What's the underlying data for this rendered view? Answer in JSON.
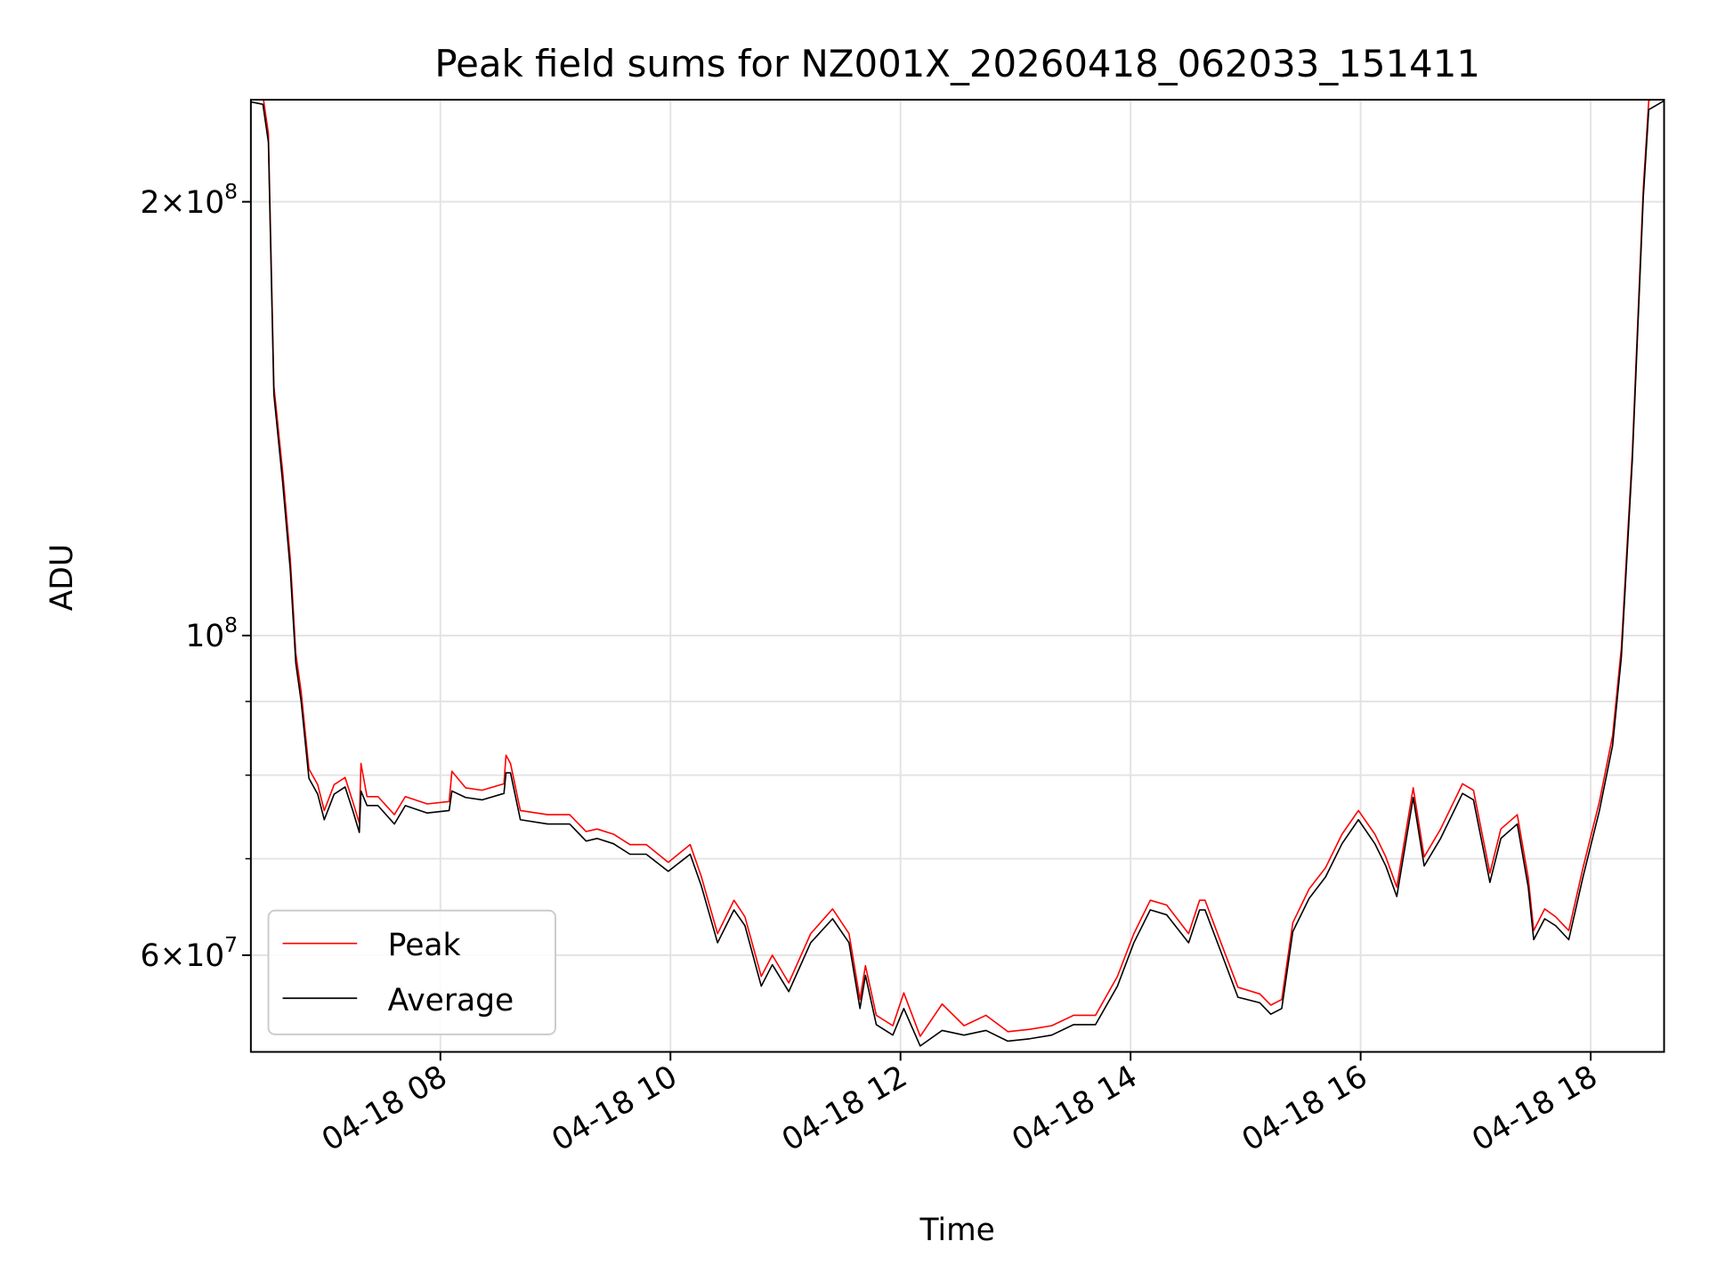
{
  "chart_data": {
    "type": "line",
    "title": "Peak field sums for NZ001X_20260418_062033_151411",
    "xlabel": "Time",
    "ylabel": "ADU",
    "y_scale": "log",
    "x_units": "hours of day 2026-04-18",
    "y_units": "ADU (millions)",
    "xlim": [
      6.35,
      18.64
    ],
    "ylim_millions": [
      51.4,
      235
    ],
    "x_ticks": [
      {
        "value": 8,
        "label": "04-18 08"
      },
      {
        "value": 10,
        "label": "04-18 10"
      },
      {
        "value": 12,
        "label": "04-18 12"
      },
      {
        "value": 14,
        "label": "04-18 14"
      },
      {
        "value": 16,
        "label": "04-18 16"
      },
      {
        "value": 18,
        "label": "04-18 18"
      }
    ],
    "y_major_ticks": [
      {
        "value": 200,
        "base": "2×10",
        "exp": "8"
      },
      {
        "value": 100,
        "base": "10",
        "exp": "8"
      },
      {
        "value": 60,
        "base": "6×10",
        "exp": "7"
      }
    ],
    "y_minor_ticks": [
      70,
      80,
      90
    ],
    "grid": true,
    "legend_position": "lower-left",
    "series": [
      {
        "name": "Peak",
        "color": "#ff0000",
        "points": [
          [
            6.352,
            238
          ],
          [
            6.457,
            237
          ],
          [
            6.505,
            223
          ],
          [
            6.552,
            149
          ],
          [
            6.629,
            130
          ],
          [
            6.695,
            113
          ],
          [
            6.743,
            97.2
          ],
          [
            6.79,
            91.4
          ],
          [
            6.857,
            80.8
          ],
          [
            6.933,
            78.8
          ],
          [
            6.99,
            75.6
          ],
          [
            7.076,
            78.8
          ],
          [
            7.171,
            79.7
          ],
          [
            7.238,
            76.7
          ],
          [
            7.295,
            74.1
          ],
          [
            7.31,
            81.5
          ],
          [
            7.362,
            77.3
          ],
          [
            7.457,
            77.3
          ],
          [
            7.6,
            75.1
          ],
          [
            7.695,
            77.3
          ],
          [
            7.886,
            76.4
          ],
          [
            8.076,
            76.7
          ],
          [
            8.1,
            80.5
          ],
          [
            8.219,
            78.4
          ],
          [
            8.362,
            78.1
          ],
          [
            8.552,
            78.9
          ],
          [
            8.57,
            82.6
          ],
          [
            8.61,
            81.5
          ],
          [
            8.695,
            75.6
          ],
          [
            8.933,
            75.1
          ],
          [
            9.124,
            75.1
          ],
          [
            9.267,
            73.1
          ],
          [
            9.362,
            73.4
          ],
          [
            9.505,
            72.8
          ],
          [
            9.648,
            71.6
          ],
          [
            9.79,
            71.6
          ],
          [
            9.981,
            69.6
          ],
          [
            10.171,
            71.6
          ],
          [
            10.267,
            68.1
          ],
          [
            10.41,
            62.1
          ],
          [
            10.552,
            65.5
          ],
          [
            10.648,
            63.8
          ],
          [
            10.79,
            58.0
          ],
          [
            10.886,
            60.0
          ],
          [
            11.029,
            57.4
          ],
          [
            11.219,
            62.1
          ],
          [
            11.41,
            64.6
          ],
          [
            11.552,
            62.1
          ],
          [
            11.648,
            55.9
          ],
          [
            11.695,
            59.0
          ],
          [
            11.79,
            54.5
          ],
          [
            11.933,
            53.6
          ],
          [
            12.029,
            56.5
          ],
          [
            12.171,
            52.7
          ],
          [
            12.362,
            55.5
          ],
          [
            12.552,
            53.6
          ],
          [
            12.743,
            54.5
          ],
          [
            12.933,
            53.1
          ],
          [
            13.124,
            53.3
          ],
          [
            13.314,
            53.6
          ],
          [
            13.505,
            54.5
          ],
          [
            13.695,
            54.5
          ],
          [
            13.886,
            58.0
          ],
          [
            14.029,
            62.1
          ],
          [
            14.171,
            65.5
          ],
          [
            14.314,
            65.0
          ],
          [
            14.505,
            62.1
          ],
          [
            14.6,
            65.5
          ],
          [
            14.648,
            65.5
          ],
          [
            14.79,
            61.1
          ],
          [
            14.933,
            57.0
          ],
          [
            15.124,
            56.4
          ],
          [
            15.219,
            55.4
          ],
          [
            15.314,
            55.9
          ],
          [
            15.41,
            63.2
          ],
          [
            15.552,
            66.7
          ],
          [
            15.695,
            69.0
          ],
          [
            15.838,
            72.8
          ],
          [
            15.981,
            75.6
          ],
          [
            16.124,
            72.8
          ],
          [
            16.219,
            70.2
          ],
          [
            16.314,
            66.9
          ],
          [
            16.457,
            78.4
          ],
          [
            16.552,
            70.2
          ],
          [
            16.695,
            73.4
          ],
          [
            16.886,
            78.9
          ],
          [
            16.981,
            78.1
          ],
          [
            17.124,
            68.4
          ],
          [
            17.219,
            73.4
          ],
          [
            17.362,
            75.1
          ],
          [
            17.457,
            67.9
          ],
          [
            17.505,
            62.4
          ],
          [
            17.6,
            64.6
          ],
          [
            17.695,
            63.8
          ],
          [
            17.81,
            62.4
          ],
          [
            17.933,
            69.0
          ],
          [
            18.076,
            76.7
          ],
          [
            18.19,
            85.2
          ],
          [
            18.267,
            98.0
          ],
          [
            18.362,
            134
          ],
          [
            18.457,
            204
          ],
          [
            18.505,
            235
          ],
          [
            18.638,
            238
          ]
        ]
      },
      {
        "name": "Average",
        "color": "#000000",
        "points": [
          [
            6.352,
            234.6
          ],
          [
            6.457,
            233.7
          ],
          [
            6.505,
            220
          ],
          [
            6.552,
            147
          ],
          [
            6.629,
            127.8
          ],
          [
            6.695,
            111
          ],
          [
            6.743,
            95.7
          ],
          [
            6.79,
            90
          ],
          [
            6.857,
            79.6
          ],
          [
            6.933,
            77.6
          ],
          [
            6.99,
            74.5
          ],
          [
            7.076,
            77.6
          ],
          [
            7.171,
            78.5
          ],
          [
            7.238,
            75.6
          ],
          [
            7.295,
            73.0
          ],
          [
            7.31,
            78.0
          ],
          [
            7.362,
            76.2
          ],
          [
            7.457,
            76.2
          ],
          [
            7.6,
            74.0
          ],
          [
            7.695,
            76.2
          ],
          [
            7.886,
            75.3
          ],
          [
            8.076,
            75.6
          ],
          [
            8.1,
            78.0
          ],
          [
            8.219,
            77.2
          ],
          [
            8.362,
            76.9
          ],
          [
            8.552,
            77.7
          ],
          [
            8.57,
            80.3
          ],
          [
            8.61,
            80.3
          ],
          [
            8.695,
            74.5
          ],
          [
            8.933,
            74.0
          ],
          [
            9.124,
            74.0
          ],
          [
            9.267,
            72.0
          ],
          [
            9.362,
            72.3
          ],
          [
            9.505,
            71.7
          ],
          [
            9.648,
            70.5
          ],
          [
            9.79,
            70.5
          ],
          [
            9.981,
            68.6
          ],
          [
            10.171,
            70.5
          ],
          [
            10.267,
            67.1
          ],
          [
            10.41,
            61.2
          ],
          [
            10.552,
            64.5
          ],
          [
            10.648,
            62.9
          ],
          [
            10.79,
            57.1
          ],
          [
            10.886,
            59.1
          ],
          [
            11.029,
            56.6
          ],
          [
            11.219,
            61.2
          ],
          [
            11.41,
            63.6
          ],
          [
            11.552,
            61.2
          ],
          [
            11.648,
            55.1
          ],
          [
            11.695,
            58.1
          ],
          [
            11.79,
            53.7
          ],
          [
            11.933,
            52.8
          ],
          [
            12.029,
            55.1
          ],
          [
            12.171,
            51.9
          ],
          [
            12.362,
            53.2
          ],
          [
            12.552,
            52.8
          ],
          [
            12.743,
            53.2
          ],
          [
            12.933,
            52.3
          ],
          [
            13.124,
            52.5
          ],
          [
            13.314,
            52.8
          ],
          [
            13.505,
            53.7
          ],
          [
            13.695,
            53.7
          ],
          [
            13.886,
            57.1
          ],
          [
            14.029,
            61.2
          ],
          [
            14.171,
            64.5
          ],
          [
            14.314,
            64.0
          ],
          [
            14.505,
            61.2
          ],
          [
            14.6,
            64.5
          ],
          [
            14.648,
            64.5
          ],
          [
            14.79,
            60.2
          ],
          [
            14.933,
            56.1
          ],
          [
            15.124,
            55.6
          ],
          [
            15.219,
            54.6
          ],
          [
            15.314,
            55.1
          ],
          [
            15.41,
            62.3
          ],
          [
            15.552,
            65.7
          ],
          [
            15.695,
            68.0
          ],
          [
            15.838,
            71.7
          ],
          [
            15.981,
            74.5
          ],
          [
            16.124,
            71.7
          ],
          [
            16.219,
            69.2
          ],
          [
            16.314,
            65.9
          ],
          [
            16.457,
            77.2
          ],
          [
            16.552,
            69.2
          ],
          [
            16.695,
            72.3
          ],
          [
            16.886,
            77.7
          ],
          [
            16.981,
            76.9
          ],
          [
            17.124,
            67.4
          ],
          [
            17.219,
            72.3
          ],
          [
            17.362,
            74.0
          ],
          [
            17.457,
            66.9
          ],
          [
            17.505,
            61.5
          ],
          [
            17.6,
            63.6
          ],
          [
            17.695,
            62.9
          ],
          [
            17.81,
            61.5
          ],
          [
            17.933,
            68.0
          ],
          [
            18.076,
            75.6
          ],
          [
            18.19,
            83.9
          ],
          [
            18.267,
            96.6
          ],
          [
            18.362,
            132.3
          ],
          [
            18.457,
            201.5
          ],
          [
            18.505,
            231.7
          ],
          [
            18.638,
            235
          ]
        ]
      }
    ]
  }
}
